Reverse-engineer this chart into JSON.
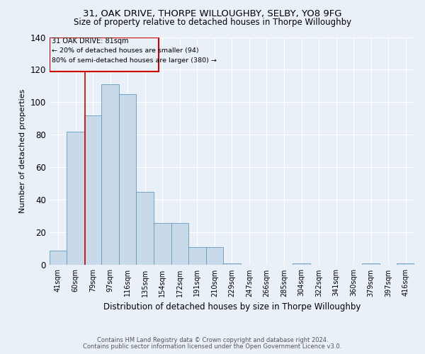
{
  "title1": "31, OAK DRIVE, THORPE WILLOUGHBY, SELBY, YO8 9FG",
  "title2": "Size of property relative to detached houses in Thorpe Willoughby",
  "xlabel": "Distribution of detached houses by size in Thorpe Willoughby",
  "ylabel": "Number of detached properties",
  "bar_values": [
    9,
    82,
    92,
    111,
    105,
    45,
    26,
    26,
    11,
    11,
    1,
    0,
    0,
    0,
    1,
    0,
    0,
    0,
    1,
    0,
    1
  ],
  "bin_labels": [
    "41sqm",
    "60sqm",
    "79sqm",
    "97sqm",
    "116sqm",
    "135sqm",
    "154sqm",
    "172sqm",
    "191sqm",
    "210sqm",
    "229sqm",
    "247sqm",
    "266sqm",
    "285sqm",
    "304sqm",
    "322sqm",
    "341sqm",
    "360sqm",
    "379sqm",
    "397sqm",
    "416sqm"
  ],
  "bar_color": "#c8daea",
  "bar_edge_color": "#6699bb",
  "bg_color": "#eaf0f8",
  "grid_color": "#ffffff",
  "annotation_box_color": "#cc0000",
  "annotation_text1": "31 OAK DRIVE: 81sqm",
  "annotation_text2": "← 20% of detached houses are smaller (94)",
  "annotation_text3": "80% of semi-detached houses are larger (380) →",
  "vline_color": "#cc0000",
  "vline_x": 1.55,
  "ylim": [
    0,
    140
  ],
  "yticks": [
    0,
    20,
    40,
    60,
    80,
    100,
    120,
    140
  ],
  "footer1": "Contains HM Land Registry data © Crown copyright and database right 2024.",
  "footer2": "Contains public sector information licensed under the Open Government Licence v3.0."
}
